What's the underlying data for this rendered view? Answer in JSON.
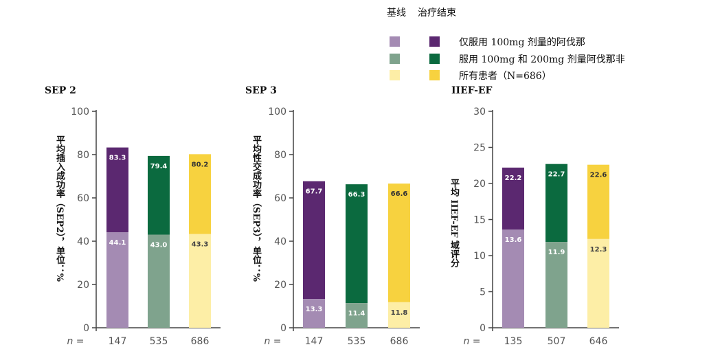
{
  "legend": {
    "head_baseline": "基线",
    "head_end": "治疗结束",
    "rows": [
      {
        "label": "仅服用 100mg 剂量的阿伐那",
        "baseline_color": "#a48bb3",
        "end_color": "#5b2870"
      },
      {
        "label": "服用 100mg 和 200mg 剂量阿伐那非",
        "baseline_color": "#7fa38d",
        "end_color": "#0b6a3f"
      },
      {
        "label": "所有患者（N=686）",
        "baseline_color": "#fdeea6",
        "end_color": "#f7d23f"
      }
    ]
  },
  "n_prefix": "n =",
  "chart_data": [
    {
      "type": "bar",
      "title": "SEP 2",
      "ylabel": "平均插入成功率（SEP2），单位：%",
      "ylim": [
        0,
        100
      ],
      "yticks": [
        0,
        20,
        40,
        60,
        80,
        100
      ],
      "categories": [
        "147",
        "535",
        "686"
      ],
      "series": [
        {
          "name": "基线",
          "values": [
            44.1,
            43.0,
            43.3
          ]
        },
        {
          "name": "治疗结束",
          "values": [
            83.3,
            79.4,
            80.2
          ]
        }
      ],
      "baseline_labels": [
        "44.1",
        "43.0",
        "43.3"
      ],
      "end_labels": [
        "83.3",
        "79.4",
        "80.2"
      ]
    },
    {
      "type": "bar",
      "title": "SEP 3",
      "ylabel": "平均性交成功率（SEP3），单位：%",
      "ylim": [
        0,
        100
      ],
      "yticks": [
        0,
        20,
        40,
        60,
        80,
        100
      ],
      "categories": [
        "147",
        "535",
        "686"
      ],
      "series": [
        {
          "name": "基线",
          "values": [
            13.3,
            11.4,
            11.8
          ]
        },
        {
          "name": "治疗结束",
          "values": [
            67.7,
            66.3,
            66.6
          ]
        }
      ],
      "baseline_labels": [
        "13.3",
        "11.4",
        "11.8"
      ],
      "end_labels": [
        "67.7",
        "66.3",
        "66.6"
      ]
    },
    {
      "type": "bar",
      "title": "IIEF-EF",
      "ylabel": "平均 IIEF-EF 域评分",
      "ylim": [
        0,
        30
      ],
      "yticks": [
        0,
        5,
        10,
        15,
        20,
        25,
        30
      ],
      "categories": [
        "135",
        "507",
        "646"
      ],
      "series": [
        {
          "name": "基线",
          "values": [
            13.6,
            11.9,
            12.3
          ]
        },
        {
          "name": "治疗结束",
          "values": [
            22.2,
            22.7,
            22.6
          ]
        }
      ],
      "baseline_labels": [
        "13.6",
        "11.9",
        "12.3"
      ],
      "end_labels": [
        "22.2",
        "22.7",
        "22.6"
      ],
      "end_values_offset_note": ""
    }
  ]
}
